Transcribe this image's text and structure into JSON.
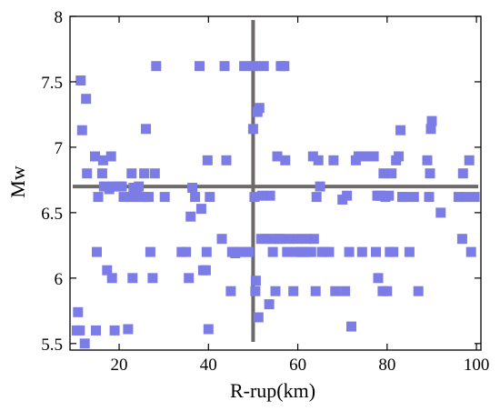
{
  "chart_data": {
    "type": "scatter",
    "xlabel": "R-rup(km)",
    "ylabel": "Mw",
    "xlim": [
      9,
      101
    ],
    "ylim": [
      5.45,
      8.0
    ],
    "xticks": [
      20,
      40,
      60,
      80,
      100
    ],
    "xtick_labels": [
      "20",
      "40",
      "60",
      "80",
      "100"
    ],
    "yticks": [
      5.5,
      6,
      6.5,
      7,
      7.5,
      8
    ],
    "ytick_labels": [
      "5.5",
      "6",
      "6.5",
      "7",
      "7.5",
      "8"
    ],
    "grid": false,
    "legend": false,
    "colors": {
      "marker": "#7c7ce6",
      "crosshair": "#6e6a6a",
      "axes": "#000000"
    },
    "reference_lines": {
      "vertical_x": 50,
      "horizontal_y": 6.7
    },
    "series": [
      {
        "points": [
          [
            10.5,
            5.6
          ],
          [
            10.8,
            5.74
          ],
          [
            11.2,
            5.6
          ],
          [
            11.4,
            7.51
          ],
          [
            11.7,
            7.13
          ],
          [
            12.3,
            5.5
          ],
          [
            12.6,
            7.37
          ],
          [
            12.8,
            6.8
          ],
          [
            14.6,
            6.93
          ],
          [
            14.8,
            5.6
          ],
          [
            15.0,
            6.2
          ],
          [
            15.3,
            6.62
          ],
          [
            16.2,
            6.8
          ],
          [
            16.4,
            6.9
          ],
          [
            16.6,
            6.7
          ],
          [
            17.3,
            6.06
          ],
          [
            17.8,
            6.68
          ],
          [
            18.2,
            6.93
          ],
          [
            18.4,
            6.0
          ],
          [
            18.6,
            6.7
          ],
          [
            19.0,
            5.6
          ],
          [
            20.0,
            6.7
          ],
          [
            20.6,
            6.7
          ],
          [
            21.0,
            6.62
          ],
          [
            22.0,
            5.61
          ],
          [
            22.5,
            6.62
          ],
          [
            22.8,
            6.8
          ],
          [
            23.0,
            6.0
          ],
          [
            23.2,
            6.69
          ],
          [
            23.6,
            6.62
          ],
          [
            24.0,
            6.63
          ],
          [
            24.4,
            6.7
          ],
          [
            25.0,
            6.62
          ],
          [
            25.6,
            6.8
          ],
          [
            25.8,
            6.62
          ],
          [
            26.0,
            7.14
          ],
          [
            26.6,
            6.62
          ],
          [
            27.0,
            6.2
          ],
          [
            27.5,
            6.0
          ],
          [
            28.0,
            6.8
          ],
          [
            28.3,
            7.62
          ],
          [
            30.2,
            6.62
          ],
          [
            34.0,
            6.2
          ],
          [
            35.0,
            6.2
          ],
          [
            35.6,
            6.0
          ],
          [
            36.0,
            6.47
          ],
          [
            36.4,
            6.69
          ],
          [
            37.0,
            6.62
          ],
          [
            38.0,
            7.62
          ],
          [
            38.4,
            6.53
          ],
          [
            38.8,
            6.06
          ],
          [
            39.4,
            6.06
          ],
          [
            39.6,
            6.2
          ],
          [
            39.8,
            6.9
          ],
          [
            40.0,
            5.61
          ],
          [
            40.3,
            6.62
          ],
          [
            43.0,
            6.3
          ],
          [
            43.6,
            7.62
          ],
          [
            44.0,
            6.9
          ],
          [
            45.0,
            5.9
          ],
          [
            45.3,
            6.2
          ],
          [
            45.7,
            6.2
          ],
          [
            46.0,
            6.19
          ],
          [
            47.0,
            6.2
          ],
          [
            48.0,
            7.62
          ],
          [
            48.4,
            6.2
          ],
          [
            49.0,
            6.2
          ],
          [
            50.0,
            7.14
          ],
          [
            50.2,
            7.62
          ],
          [
            50.3,
            6.62
          ],
          [
            50.5,
            5.9
          ],
          [
            50.6,
            5.98
          ],
          [
            51.0,
            7.27
          ],
          [
            51.2,
            5.7
          ],
          [
            51.4,
            7.3
          ],
          [
            51.8,
            6.3
          ],
          [
            52.0,
            6.63
          ],
          [
            52.4,
            7.62
          ],
          [
            53.0,
            6.3
          ],
          [
            53.6,
            5.8
          ],
          [
            53.8,
            6.63
          ],
          [
            54.0,
            6.3
          ],
          [
            54.4,
            6.2
          ],
          [
            55.0,
            5.9
          ],
          [
            55.4,
            6.93
          ],
          [
            55.6,
            6.3
          ],
          [
            56.0,
            6.3
          ],
          [
            56.2,
            7.62
          ],
          [
            57.0,
            7.62
          ],
          [
            57.2,
            6.9
          ],
          [
            57.6,
            6.2
          ],
          [
            58.0,
            6.3
          ],
          [
            59.0,
            5.9
          ],
          [
            59.6,
            6.2
          ],
          [
            60.0,
            6.3
          ],
          [
            60.6,
            6.2
          ],
          [
            61.0,
            6.2
          ],
          [
            61.6,
            6.2
          ],
          [
            62.0,
            6.3
          ],
          [
            62.4,
            6.2
          ],
          [
            63.0,
            6.2
          ],
          [
            63.4,
            6.93
          ],
          [
            63.6,
            6.3
          ],
          [
            64.0,
            5.9
          ],
          [
            64.2,
            6.62
          ],
          [
            64.6,
            6.9
          ],
          [
            65.0,
            6.7
          ],
          [
            65.4,
            6.2
          ],
          [
            66.0,
            6.2
          ],
          [
            67.0,
            6.2
          ],
          [
            68.0,
            6.9
          ],
          [
            68.4,
            5.9
          ],
          [
            70.0,
            6.6
          ],
          [
            70.6,
            5.9
          ],
          [
            71.0,
            6.63
          ],
          [
            71.5,
            6.2
          ],
          [
            72.0,
            5.63
          ],
          [
            73.0,
            6.9
          ],
          [
            73.6,
            6.93
          ],
          [
            74.0,
            6.93
          ],
          [
            74.4,
            6.2
          ],
          [
            75.0,
            6.93
          ],
          [
            76.0,
            6.93
          ],
          [
            77.0,
            6.93
          ],
          [
            77.5,
            6.2
          ],
          [
            77.8,
            6.63
          ],
          [
            78.0,
            6.0
          ],
          [
            78.4,
            6.63
          ],
          [
            78.6,
            6.63
          ],
          [
            79.0,
            5.9
          ],
          [
            79.2,
            6.8
          ],
          [
            79.6,
            6.62
          ],
          [
            80.0,
            5.9
          ],
          [
            80.4,
            6.63
          ],
          [
            80.6,
            6.2
          ],
          [
            81.0,
            6.8
          ],
          [
            81.4,
            6.2
          ],
          [
            82.0,
            6.9
          ],
          [
            82.6,
            6.93
          ],
          [
            83.0,
            7.13
          ],
          [
            83.4,
            6.62
          ],
          [
            84.0,
            6.62
          ],
          [
            85.0,
            6.2
          ],
          [
            86.0,
            6.62
          ],
          [
            87.0,
            5.9
          ],
          [
            89.0,
            6.9
          ],
          [
            89.4,
            6.62
          ],
          [
            89.6,
            6.8
          ],
          [
            89.8,
            7.14
          ],
          [
            90.0,
            7.2
          ],
          [
            92.0,
            6.5
          ],
          [
            96.0,
            6.62
          ],
          [
            96.8,
            6.3
          ],
          [
            97.0,
            6.8
          ],
          [
            97.6,
            6.62
          ],
          [
            98.4,
            6.9
          ],
          [
            98.8,
            6.2
          ],
          [
            99.6,
            6.62
          ]
        ]
      }
    ]
  }
}
